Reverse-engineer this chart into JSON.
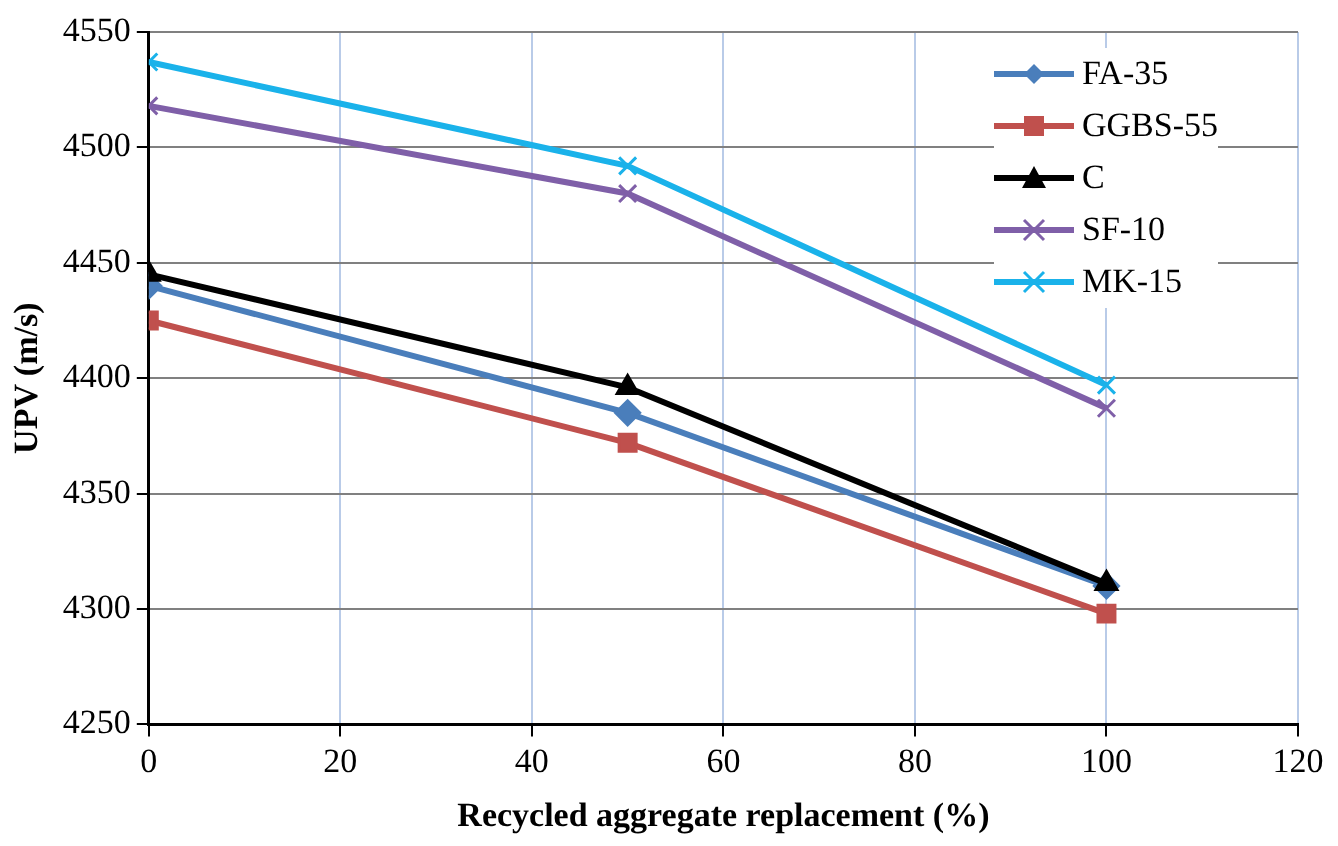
{
  "chart_data": {
    "type": "line",
    "xlabel": "Recycled aggregate replacement (%)",
    "ylabel": "UPV (m/s)",
    "x": [
      0,
      50,
      100
    ],
    "series": [
      {
        "name": "FA-35",
        "color": "#4a7ebb",
        "marker": "diamond",
        "values": [
          4440,
          4385,
          4310
        ]
      },
      {
        "name": "GGBS-55",
        "color": "#c0504d",
        "marker": "square",
        "values": [
          4425,
          4372,
          4298
        ]
      },
      {
        "name": "C",
        "color": "#000000",
        "marker": "triangle",
        "values": [
          4445,
          4396,
          4311
        ]
      },
      {
        "name": "SF-10",
        "color": "#7f5fa8",
        "marker": "cross",
        "values": [
          4518,
          4480,
          4387
        ]
      },
      {
        "name": "MK-15",
        "color": "#1ab2ea",
        "marker": "cross",
        "values": [
          4537,
          4492,
          4397
        ]
      }
    ],
    "xlim": [
      0,
      120
    ],
    "xticks": [
      0,
      20,
      40,
      60,
      80,
      100,
      120
    ],
    "ylim": [
      4250,
      4550
    ],
    "yticks": [
      4250,
      4300,
      4350,
      4400,
      4450,
      4500,
      4550
    ],
    "grid": true,
    "legend": "top right",
    "line_style": "solid"
  }
}
